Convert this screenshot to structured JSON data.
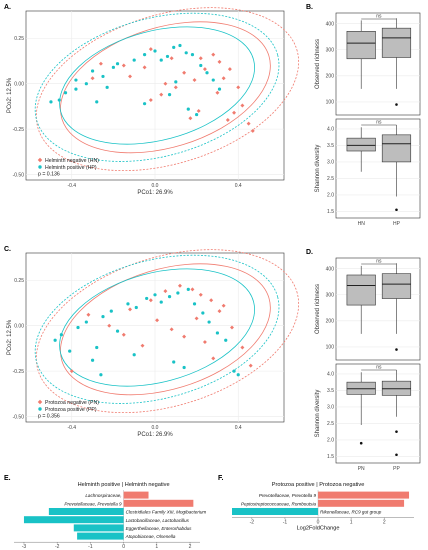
{
  "figure": {
    "pcoa_plots": [
      {
        "letter": "A.",
        "xlabel": "PCo1: 26.9%",
        "ylabel": "PCo2: 12.5%",
        "x_ticks": [
          "-0.4",
          "0.0",
          "0.4"
        ],
        "y_ticks": [
          "0.25",
          "0.00",
          "-0.25",
          "-0.50"
        ],
        "legend": [
          "Helminth negative (HN)",
          "Helminth positive (HP)"
        ],
        "p_text": "p = 0.136"
      },
      {
        "letter": "C.",
        "xlabel": "PCo1: 26.9%",
        "ylabel": "PCo2: 12.5%",
        "x_ticks": [
          "-0.4",
          "0.0",
          "0.4"
        ],
        "y_ticks": [
          "0.25",
          "0.00",
          "-0.25",
          "-0.50"
        ],
        "legend": [
          "Protozoa negative (PN)",
          "Protozoa positive (PP)"
        ],
        "p_text": "p = 0.356"
      }
    ],
    "box_panels": [
      {
        "letter": "B.",
        "group_labels": [
          "HN",
          "HP"
        ],
        "richness": {
          "ylabel": "Observed richness",
          "ticks": [
            "400",
            "300",
            "200",
            "100"
          ],
          "sig": "ns"
        },
        "shannon": {
          "ylabel": "Shannon diversity",
          "ticks": [
            "4.0",
            "3.5",
            "3.0",
            "2.5",
            "2.0",
            "1.5"
          ],
          "sig": "ns"
        }
      },
      {
        "letter": "D.",
        "group_labels": [
          "PN",
          "PP"
        ],
        "richness": {
          "ylabel": "Observed richness",
          "ticks": [
            "400",
            "300",
            "200",
            "100"
          ],
          "sig": "ns"
        },
        "shannon": {
          "ylabel": "Shannon diversity",
          "ticks": [
            "4.0",
            "3.5",
            "3.0",
            "2.5",
            "2.0",
            "1.5"
          ],
          "sig": "ns"
        }
      }
    ],
    "fold_panels": [
      {
        "letter": "E.",
        "header": "Helminth positive | Helminth negative",
        "xlabel": "Log2FoldChange",
        "x_ticks": [
          "-3",
          "-2",
          "-1",
          "0",
          "1",
          "2"
        ],
        "labels": [
          "Lachnospiraceae,",
          "Prevotellaceae, Prevotella 9",
          "Clostridiales Family XIII, Mogibacterium",
          "Lactobacillaceae, Lactobacillus",
          "Eggerthellaceae, Enterorhabdus",
          "Atopobiaceae, Olsenella"
        ]
      },
      {
        "letter": "F.",
        "header": "Protozoa positive | Protozoa negative",
        "xlabel": "Log2FoldChange",
        "x_ticks": [
          "-2",
          "-1",
          "0",
          "1",
          "2"
        ],
        "labels": [
          "Prevotellaceae, Prevotella 9",
          "Peptostreptococcaceae, Romboutsia",
          "Rikenellaceae, RC9 gut group"
        ]
      }
    ]
  },
  "colors": {
    "negative": "#f07b6f",
    "positive": "#19c2c6",
    "grid": "#ebebeb",
    "box_fill": "#bdbdbd"
  },
  "chart_data": [
    {
      "type": "scatter",
      "title": "A.",
      "xlabel": "PCo1: 26.9%",
      "ylabel": "PCo2: 12.5%",
      "xlim": [
        -0.62,
        0.62
      ],
      "ylim": [
        -0.53,
        0.4
      ],
      "grid": true,
      "legend_position": "bottom-left",
      "series": [
        {
          "name": "Helminth negative (HN)",
          "x": [
            -0.02,
            0.08,
            0.22,
            0.31,
            0.36,
            0.4,
            0.42,
            0.35,
            0.45,
            0.47,
            0.21,
            0.03,
            -0.12,
            -0.26,
            -0.05,
            0.14,
            0.19,
            0.1,
            0.3,
            0.05,
            -0.15,
            0.28,
            0.38,
            -0.3,
            -0.02,
            0.17,
            0.24,
            0.33
          ],
          "y": [
            0.19,
            0.14,
            0.14,
            0.12,
            0.08,
            -0.02,
            -0.12,
            -0.2,
            -0.22,
            -0.26,
            -0.15,
            -0.06,
            0.04,
            0.11,
            0.09,
            0.06,
            0.02,
            -0.02,
            -0.05,
            0.0,
            0.1,
            0.16,
            -0.16,
            0.03,
            -0.09,
            -0.19,
            0.08,
            0.03
          ]
        },
        {
          "name": "Helminth positive (HP)",
          "x": [
            -0.46,
            -0.43,
            -0.38,
            -0.33,
            -0.28,
            -0.25,
            -0.2,
            -0.18,
            -0.1,
            -0.05,
            0.0,
            0.03,
            0.06,
            0.09,
            0.12,
            0.15,
            0.18,
            0.22,
            0.25,
            0.28,
            0.31,
            0.07,
            -0.05,
            -0.3,
            -0.23,
            0.1,
            0.16,
            0.2,
            -0.38,
            -0.5
          ],
          "y": [
            -0.09,
            -0.05,
            -0.03,
            0.0,
            -0.1,
            0.04,
            0.09,
            0.11,
            0.13,
            0.16,
            0.18,
            0.13,
            0.15,
            0.2,
            0.21,
            0.17,
            0.16,
            0.1,
            0.06,
            0.02,
            -0.03,
            -0.06,
            -0.11,
            0.07,
            -0.02,
            0.01,
            -0.14,
            -0.17,
            0.02,
            -0.1
          ]
        }
      ]
    },
    {
      "type": "box",
      "title": "B. Observed richness",
      "categories": [
        "HN",
        "HP"
      ],
      "ylabel": "Observed richness",
      "ylim": [
        50,
        440
      ],
      "boxes": [
        {
          "group": "HN",
          "min": 150,
          "q1": 265,
          "median": 325,
          "q3": 370,
          "max": 412,
          "outliers": []
        },
        {
          "group": "HP",
          "min": 150,
          "q1": 270,
          "median": 345,
          "q3": 382,
          "max": 420,
          "outliers": [
            90
          ]
        }
      ],
      "annotation": "ns"
    },
    {
      "type": "box",
      "title": "B. Shannon diversity",
      "categories": [
        "HN",
        "HP"
      ],
      "ylabel": "Shannon diversity",
      "ylim": [
        1.3,
        4.3
      ],
      "boxes": [
        {
          "group": "HN",
          "min": 2.7,
          "q1": 3.33,
          "median": 3.5,
          "q3": 3.72,
          "max": 4.05,
          "outliers": []
        },
        {
          "group": "HP",
          "min": 1.95,
          "q1": 3.0,
          "median": 3.55,
          "q3": 3.82,
          "max": 4.12,
          "outliers": [
            1.55
          ]
        }
      ],
      "annotation": "ns"
    },
    {
      "type": "scatter",
      "title": "C.",
      "xlabel": "PCo1: 26.9%",
      "ylabel": "PCo2: 12.5%",
      "xlim": [
        -0.62,
        0.62
      ],
      "ylim": [
        -0.53,
        0.4
      ],
      "grid": true,
      "legend_position": "bottom-left",
      "series": [
        {
          "name": "Protozoa negative (PN)",
          "x": [
            -0.32,
            -0.22,
            -0.12,
            -0.02,
            0.05,
            0.12,
            0.18,
            0.22,
            0.27,
            0.31,
            0.37,
            0.42,
            0.46,
            0.08,
            0.14,
            -0.06,
            0.2,
            0.28,
            -0.4,
            0.33,
            0.01,
            0.24,
            -0.15
          ],
          "y": [
            0.06,
            0.0,
            0.09,
            0.14,
            0.19,
            0.22,
            0.2,
            0.17,
            0.14,
            0.08,
            -0.01,
            -0.12,
            -0.22,
            -0.02,
            -0.06,
            -0.11,
            0.04,
            -0.18,
            -0.25,
            0.11,
            0.03,
            -0.09,
            -0.05
          ]
        },
        {
          "name": "Protozoa positive (PP)",
          "x": [
            -0.48,
            -0.45,
            -0.41,
            -0.37,
            -0.33,
            -0.28,
            -0.25,
            -0.21,
            -0.18,
            -0.13,
            -0.09,
            -0.04,
            0.0,
            0.03,
            0.07,
            0.11,
            0.16,
            0.19,
            0.23,
            0.26,
            0.3,
            0.34,
            -0.3,
            -0.26,
            -0.1,
            0.09,
            0.14,
            0.38,
            0.4
          ],
          "y": [
            -0.08,
            -0.05,
            -0.14,
            -0.01,
            0.02,
            -0.12,
            0.05,
            0.08,
            -0.03,
            0.12,
            0.1,
            0.15,
            0.17,
            0.13,
            0.16,
            0.18,
            0.2,
            0.12,
            0.07,
            0.02,
            -0.04,
            -0.08,
            -0.19,
            -0.27,
            -0.16,
            -0.2,
            -0.23,
            -0.25,
            -0.27
          ]
        }
      ]
    },
    {
      "type": "box",
      "title": "D. Observed richness",
      "categories": [
        "PN",
        "PP"
      ],
      "ylabel": "Observed richness",
      "ylim": [
        50,
        440
      ],
      "boxes": [
        {
          "group": "PN",
          "min": 150,
          "q1": 260,
          "median": 335,
          "q3": 375,
          "max": 410,
          "outliers": []
        },
        {
          "group": "PP",
          "min": 150,
          "q1": 285,
          "median": 340,
          "q3": 380,
          "max": 420,
          "outliers": [
            90
          ]
        }
      ],
      "annotation": "ns"
    },
    {
      "type": "box",
      "title": "D. Shannon diversity",
      "categories": [
        "PN",
        "PP"
      ],
      "ylabel": "Shannon diversity",
      "ylim": [
        1.3,
        4.3
      ],
      "boxes": [
        {
          "group": "PN",
          "min": 2.45,
          "q1": 3.38,
          "median": 3.55,
          "q3": 3.75,
          "max": 4.05,
          "outliers": [
            1.9
          ]
        },
        {
          "group": "PP",
          "min": 2.7,
          "q1": 3.35,
          "median": 3.55,
          "q3": 3.78,
          "max": 4.12,
          "outliers": [
            2.25,
            1.55
          ]
        }
      ],
      "annotation": "ns"
    },
    {
      "type": "bar",
      "orientation": "horizontal",
      "title": "E.",
      "xlabel": "Log2FoldChange",
      "xlim": [
        -3.3,
        2.3
      ],
      "categories": [
        "Lachnospiraceae,",
        "Prevotellaceae, Prevotella 9",
        "Clostridiales Family XIII, Mogibacterium",
        "Lactobacillaceae, Lactobacillus",
        "Eggerthellaceae, Enterorhabdus",
        "Atopobiaceae, Olsenella"
      ],
      "values": [
        0.75,
        2.1,
        -2.25,
        -3.0,
        -1.5,
        -1.4
      ]
    },
    {
      "type": "bar",
      "orientation": "horizontal",
      "title": "F.",
      "xlabel": "Log2FoldChange",
      "xlim": [
        -2.6,
        2.9
      ],
      "categories": [
        "Prevotellaceae, Prevotella 9",
        "Peptostreptococcaceae, Romboutsia",
        "Rikenellaceae, RC9 gut group"
      ],
      "values": [
        2.75,
        2.6,
        -2.6
      ]
    }
  ]
}
